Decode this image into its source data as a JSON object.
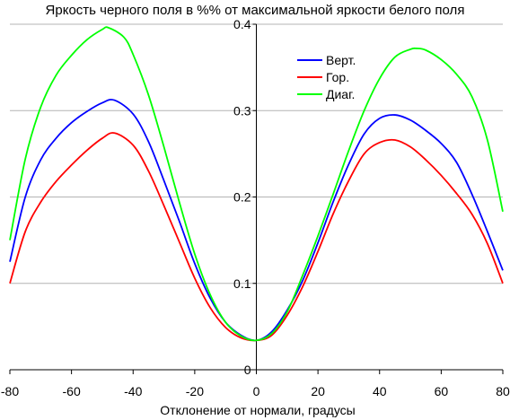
{
  "chart_data": {
    "type": "line",
    "title": "Яркость черного поля в %% от максимальной яркости белого поля",
    "xlabel": "Отклонение от нормали, градусы",
    "ylabel": "",
    "xlim": [
      -80,
      80
    ],
    "ylim": [
      0,
      0.4
    ],
    "x_ticks": [
      "-80",
      "-60",
      "-40",
      "-20",
      "0",
      "20",
      "40",
      "60",
      "80"
    ],
    "y_ticks": [
      "0",
      "0.1",
      "0.2",
      "0.3",
      "0.4"
    ],
    "grid": "horizontal",
    "legend_position": "top-right",
    "series": [
      {
        "name": "Верт.",
        "color": "#0000ff",
        "x": [
          -80,
          -75,
          -70,
          -65,
          -60,
          -55,
          -50,
          -46,
          -40,
          -35,
          -30,
          -25,
          -20,
          -15,
          -10,
          -5,
          0,
          5,
          10,
          15,
          20,
          25,
          30,
          35,
          40,
          45,
          50,
          55,
          60,
          65,
          70,
          75,
          80
        ],
        "values": [
          0.125,
          0.2,
          0.243,
          0.268,
          0.286,
          0.299,
          0.309,
          0.312,
          0.296,
          0.264,
          0.219,
          0.172,
          0.123,
          0.083,
          0.055,
          0.04,
          0.034,
          0.044,
          0.069,
          0.103,
          0.147,
          0.195,
          0.238,
          0.273,
          0.291,
          0.295,
          0.289,
          0.277,
          0.262,
          0.24,
          0.203,
          0.16,
          0.115
        ]
      },
      {
        "name": "Гор.",
        "color": "#ff0000",
        "x": [
          -80,
          -75,
          -70,
          -65,
          -60,
          -55,
          -50,
          -46,
          -40,
          -35,
          -30,
          -25,
          -20,
          -15,
          -10,
          -5,
          0,
          5,
          10,
          15,
          20,
          25,
          30,
          35,
          40,
          45,
          50,
          55,
          60,
          65,
          70,
          75,
          80
        ],
        "values": [
          0.1,
          0.16,
          0.194,
          0.218,
          0.237,
          0.254,
          0.268,
          0.274,
          0.26,
          0.23,
          0.19,
          0.148,
          0.106,
          0.072,
          0.049,
          0.037,
          0.034,
          0.04,
          0.063,
          0.096,
          0.137,
          0.181,
          0.219,
          0.25,
          0.263,
          0.266,
          0.258,
          0.243,
          0.225,
          0.204,
          0.18,
          0.146,
          0.1
        ]
      },
      {
        "name": "Диаг.",
        "color": "#00ff00",
        "x": [
          -80,
          -75,
          -70,
          -65,
          -60,
          -55,
          -50,
          -48,
          -43,
          -40,
          -35,
          -30,
          -25,
          -20,
          -15,
          -10,
          -5,
          0,
          5,
          10,
          15,
          20,
          25,
          30,
          35,
          40,
          45,
          50,
          52,
          55,
          60,
          65,
          70,
          75,
          80
        ],
        "values": [
          0.15,
          0.244,
          0.304,
          0.341,
          0.364,
          0.382,
          0.394,
          0.396,
          0.385,
          0.365,
          0.318,
          0.258,
          0.194,
          0.134,
          0.087,
          0.055,
          0.039,
          0.034,
          0.042,
          0.067,
          0.109,
          0.155,
          0.204,
          0.254,
          0.3,
          0.337,
          0.362,
          0.371,
          0.372,
          0.37,
          0.359,
          0.342,
          0.316,
          0.266,
          0.183
        ]
      }
    ]
  }
}
